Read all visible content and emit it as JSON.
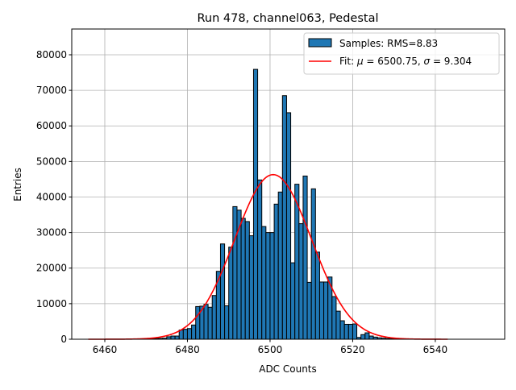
{
  "chart_data": {
    "type": "bar",
    "title": "Run 478, channel063, Pedestal",
    "xlabel": "ADC Counts",
    "ylabel": "Entries",
    "xlim": [
      6452,
      6556.8
    ],
    "ylim": [
      0,
      87250
    ],
    "xticks": [
      6460,
      6480,
      6500,
      6520,
      6540
    ],
    "yticks": [
      0,
      10000,
      20000,
      30000,
      40000,
      50000,
      60000,
      70000,
      80000
    ],
    "grid": true,
    "legend_position": "top-right",
    "bar_color": "#1f77b4",
    "fit_color": "#ff0000",
    "bin_width": 1,
    "bins": [
      6468,
      6469,
      6470,
      6471,
      6472,
      6473,
      6474,
      6475,
      6476,
      6477,
      6478,
      6479,
      6480,
      6481,
      6482,
      6483,
      6484,
      6485,
      6486,
      6487,
      6488,
      6489,
      6490,
      6491,
      6492,
      6493,
      6494,
      6495,
      6496,
      6497,
      6498,
      6499,
      6500,
      6501,
      6502,
      6503,
      6504,
      6505,
      6506,
      6507,
      6508,
      6509,
      6510,
      6511,
      6512,
      6513,
      6514,
      6515,
      6516,
      6517,
      6518,
      6519,
      6520,
      6521,
      6522,
      6523,
      6524,
      6525,
      6526,
      6527,
      6528,
      6529,
      6530
    ],
    "values": [
      50,
      80,
      100,
      150,
      200,
      250,
      300,
      700,
      900,
      900,
      2600,
      2800,
      3000,
      4000,
      9200,
      9300,
      9800,
      9000,
      12300,
      19100,
      26800,
      9400,
      25900,
      37300,
      36300,
      34000,
      33100,
      29100,
      75900,
      44800,
      31700,
      30000,
      30000,
      38000,
      41400,
      68500,
      63700,
      21500,
      43600,
      32500,
      45900,
      16000,
      42300,
      24500,
      16100,
      16100,
      17500,
      12000,
      7900,
      5200,
      4200,
      4200,
      4300,
      500,
      1300,
      1800,
      900,
      600,
      400,
      300,
      200,
      150,
      100
    ],
    "fit": {
      "mu": 6500.75,
      "sigma": 9.304,
      "amplitude": 46300,
      "range": [
        6456,
        6543
      ]
    },
    "legend": [
      {
        "label": "Samples: RMS=8.83"
      },
      {
        "label_prefix": "Fit: ",
        "mu_symbol": "μ",
        "mu_text": " = 6500.75, ",
        "sigma_symbol": "σ",
        "sigma_text": " = 9.304"
      }
    ]
  }
}
